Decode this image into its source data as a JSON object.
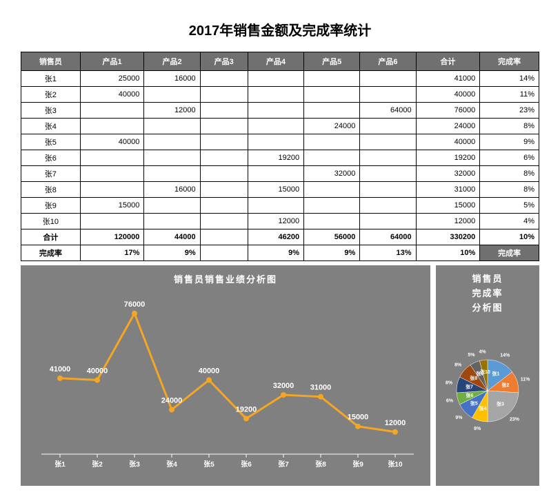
{
  "title": "2017年销售金额及完成率统计",
  "table": {
    "headers": [
      "销售员",
      "产品1",
      "产品2",
      "产品3",
      "产品4",
      "产品5",
      "产品6",
      "合计",
      "完成率"
    ],
    "rows": [
      {
        "name": "张1",
        "cells": [
          "25000",
          "16000",
          "",
          "",
          "",
          "",
          "41000",
          "14%"
        ]
      },
      {
        "name": "张2",
        "cells": [
          "40000",
          "",
          "",
          "",
          "",
          "",
          "40000",
          "11%"
        ]
      },
      {
        "name": "张3",
        "cells": [
          "",
          "12000",
          "",
          "",
          "",
          "64000",
          "76000",
          "23%"
        ]
      },
      {
        "name": "张4",
        "cells": [
          "",
          "",
          "",
          "",
          "24000",
          "",
          "24000",
          "8%"
        ]
      },
      {
        "name": "张5",
        "cells": [
          "40000",
          "",
          "",
          "",
          "",
          "",
          "40000",
          "9%"
        ]
      },
      {
        "name": "张6",
        "cells": [
          "",
          "",
          "",
          "19200",
          "",
          "",
          "19200",
          "6%"
        ]
      },
      {
        "name": "张7",
        "cells": [
          "",
          "",
          "",
          "",
          "32000",
          "",
          "32000",
          "8%"
        ]
      },
      {
        "name": "张8",
        "cells": [
          "",
          "16000",
          "",
          "15000",
          "",
          "",
          "31000",
          "8%"
        ]
      },
      {
        "name": "张9",
        "cells": [
          "15000",
          "",
          "",
          "",
          "",
          "",
          "15000",
          "5%"
        ]
      },
      {
        "name": "张10",
        "cells": [
          "",
          "",
          "",
          "12000",
          "",
          "",
          "12000",
          "4%"
        ]
      }
    ],
    "totals": {
      "label": "合计",
      "cells": [
        "120000",
        "44000",
        "",
        "46200",
        "56000",
        "64000",
        "330200",
        "10%"
      ]
    },
    "rates": {
      "label": "完成率",
      "cells": [
        "17%",
        "9%",
        "",
        "9%",
        "9%",
        "13%",
        "10%"
      ],
      "trailing_label": "完成率"
    }
  },
  "line_chart": {
    "title": "销售员销售业绩分析图",
    "type": "line",
    "categories": [
      "张1",
      "张2",
      "张3",
      "张4",
      "张5",
      "张6",
      "张7",
      "张8",
      "张9",
      "张10"
    ],
    "values": [
      41000,
      40000,
      76000,
      24000,
      40000,
      19200,
      32000,
      31000,
      15000,
      12000
    ],
    "ylim": [
      0,
      80000
    ],
    "line_color": "#f5a623",
    "line_width": 3,
    "marker_color": "#f5a623",
    "marker_size": 4,
    "label_color": "#ffffff",
    "label_fontsize": 11,
    "axis_label_color": "#ffffff",
    "axis_label_fontsize": 10,
    "background_color": "#808080",
    "axis_line_color": "#ffffff"
  },
  "pie_chart": {
    "title_lines": [
      "销售员",
      "完成率",
      "分析图"
    ],
    "type": "pie",
    "slices": [
      {
        "label": "张1",
        "pct": 14,
        "color": "#5b9bd5"
      },
      {
        "label": "张2",
        "pct": 11,
        "color": "#ed7d31"
      },
      {
        "label": "张3",
        "pct": 23,
        "color": "#a5a5a5"
      },
      {
        "label": "张4",
        "pct": 8,
        "color": "#ffc000"
      },
      {
        "label": "张5",
        "pct": 9,
        "color": "#4472c4"
      },
      {
        "label": "张6",
        "pct": 6,
        "color": "#70ad47"
      },
      {
        "label": "张7",
        "pct": 8,
        "color": "#264478"
      },
      {
        "label": "张8",
        "pct": 8,
        "color": "#9e480e"
      },
      {
        "label": "张9",
        "pct": 5,
        "color": "#636363"
      },
      {
        "label": "张10",
        "pct": 4,
        "color": "#997300"
      }
    ],
    "background_color": "#808080",
    "label_color": "#ffffff",
    "label_fontsize": 7
  }
}
